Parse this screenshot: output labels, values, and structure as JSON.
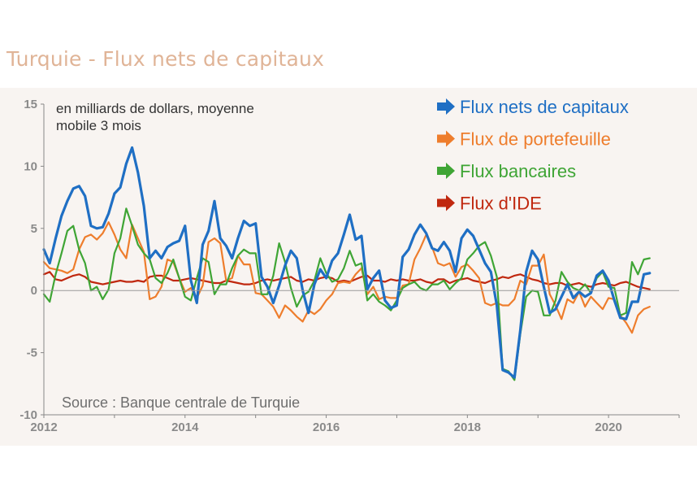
{
  "title": "Turquie - Flux nets de capitaux",
  "subtitle_line1": "en milliards de dollars, moyenne",
  "subtitle_line2": "mobile 3 mois",
  "source": "Source : Banque centrale de Turquie",
  "colors": {
    "panel_bg": "#f8f4f1",
    "axis": "#888888",
    "tick_label": "#8a8a8a",
    "flux_nets": "#1f6fc4",
    "flux_portefeuille": "#ee7d2c",
    "flux_bancaires": "#3fa535",
    "flux_ide": "#c0280f",
    "title": "#e0b497"
  },
  "chart_data": {
    "type": "line",
    "ylim": [
      -10,
      15
    ],
    "xlim": [
      2012,
      2021
    ],
    "yticks": [
      -10,
      -5,
      0,
      5,
      10,
      15
    ],
    "xticks": [
      2012,
      2014,
      2016,
      2018,
      2020
    ],
    "grid": false,
    "legend_position": "top-right",
    "series": [
      {
        "name": "Flux nets de capitaux",
        "color": "#1f6fc4",
        "x": [
          2012.0,
          2012.083,
          2012.167,
          2012.25,
          2012.333,
          2012.417,
          2012.5,
          2012.583,
          2012.667,
          2012.75,
          2012.833,
          2012.917,
          2013.0,
          2013.083,
          2013.167,
          2013.25,
          2013.333,
          2013.417,
          2013.5,
          2013.583,
          2013.667,
          2013.75,
          2013.833,
          2013.917,
          2014.0,
          2014.083,
          2014.167,
          2014.25,
          2014.333,
          2014.417,
          2014.5,
          2014.583,
          2014.667,
          2014.75,
          2014.833,
          2014.917,
          2015.0,
          2015.083,
          2015.167,
          2015.25,
          2015.333,
          2015.417,
          2015.5,
          2015.583,
          2015.667,
          2015.75,
          2015.833,
          2015.917,
          2016.0,
          2016.083,
          2016.167,
          2016.25,
          2016.333,
          2016.417,
          2016.5,
          2016.583,
          2016.667,
          2016.75,
          2016.833,
          2016.917,
          2017.0,
          2017.083,
          2017.167,
          2017.25,
          2017.333,
          2017.417,
          2017.5,
          2017.583,
          2017.667,
          2017.75,
          2017.833,
          2017.917,
          2018.0,
          2018.083,
          2018.167,
          2018.25,
          2018.333,
          2018.417,
          2018.5,
          2018.583,
          2018.667,
          2018.75,
          2018.833,
          2018.917,
          2019.0,
          2019.083,
          2019.167,
          2019.25,
          2019.333,
          2019.417,
          2019.5,
          2019.583,
          2019.667,
          2019.75,
          2019.833,
          2019.917,
          2020.0,
          2020.083,
          2020.167,
          2020.25,
          2020.333,
          2020.417,
          2020.5,
          2020.583
        ],
        "values": [
          3.3,
          2.2,
          4.2,
          6.0,
          7.2,
          8.2,
          8.4,
          7.6,
          5.2,
          5.0,
          5.1,
          6.2,
          7.8,
          8.3,
          10.2,
          11.5,
          9.5,
          6.8,
          2.6,
          3.2,
          2.6,
          3.5,
          3.8,
          4.0,
          5.2,
          0.8,
          -1.0,
          3.7,
          4.8,
          7.2,
          4.2,
          3.6,
          2.6,
          4.2,
          5.6,
          5.2,
          5.4,
          1.1,
          0.3,
          -1.0,
          0.4,
          2.0,
          3.2,
          2.6,
          0.0,
          -1.8,
          0.5,
          1.7,
          1.0,
          2.4,
          3.0,
          4.5,
          6.1,
          4.1,
          4.4,
          0.1,
          1.0,
          1.6,
          -0.8,
          -1.4,
          -1.2,
          2.7,
          3.3,
          4.5,
          5.3,
          4.6,
          3.4,
          3.2,
          3.9,
          3.2,
          1.5,
          4.2,
          4.9,
          4.4,
          3.3,
          2.2,
          1.5,
          -1.2,
          -6.4,
          -6.6,
          -7.0,
          -3.2,
          1.5,
          3.2,
          2.5,
          0.3,
          -1.8,
          -1.5,
          -0.5,
          0.5,
          -0.6,
          -0.1,
          -0.5,
          -0.2,
          1.2,
          1.6,
          0.8,
          -0.8,
          -2.2,
          -2.3,
          -0.9,
          -0.9,
          1.3,
          1.4
        ]
      },
      {
        "name": "Flux de portefeuille",
        "color": "#ee7d2c",
        "x": [
          2012.0,
          2012.083,
          2012.167,
          2012.25,
          2012.333,
          2012.417,
          2012.5,
          2012.583,
          2012.667,
          2012.75,
          2012.833,
          2012.917,
          2013.0,
          2013.083,
          2013.167,
          2013.25,
          2013.333,
          2013.417,
          2013.5,
          2013.583,
          2013.667,
          2013.75,
          2013.833,
          2013.917,
          2014.0,
          2014.083,
          2014.167,
          2014.25,
          2014.333,
          2014.417,
          2014.5,
          2014.583,
          2014.667,
          2014.75,
          2014.833,
          2014.917,
          2015.0,
          2015.083,
          2015.167,
          2015.25,
          2015.333,
          2015.417,
          2015.5,
          2015.583,
          2015.667,
          2015.75,
          2015.833,
          2015.917,
          2016.0,
          2016.083,
          2016.167,
          2016.25,
          2016.333,
          2016.417,
          2016.5,
          2016.583,
          2016.667,
          2016.75,
          2016.833,
          2016.917,
          2017.0,
          2017.083,
          2017.167,
          2017.25,
          2017.333,
          2017.417,
          2017.5,
          2017.583,
          2017.667,
          2017.75,
          2017.833,
          2017.917,
          2018.0,
          2018.083,
          2018.167,
          2018.25,
          2018.333,
          2018.417,
          2018.5,
          2018.583,
          2018.667,
          2018.75,
          2018.833,
          2018.917,
          2019.0,
          2019.083,
          2019.167,
          2019.25,
          2019.333,
          2019.417,
          2019.5,
          2019.583,
          2019.667,
          2019.75,
          2019.833,
          2019.917,
          2020.0,
          2020.083,
          2020.167,
          2020.25,
          2020.333,
          2020.417,
          2020.5,
          2020.583
        ],
        "values": [
          2.3,
          1.8,
          1.7,
          1.6,
          1.4,
          1.7,
          3.3,
          4.3,
          4.5,
          4.1,
          4.6,
          5.5,
          4.5,
          3.3,
          2.6,
          5.3,
          4.2,
          3.1,
          -0.7,
          -0.5,
          0.3,
          2.5,
          2.3,
          1.0,
          -0.1,
          0.2,
          -0.6,
          0.4,
          3.9,
          4.2,
          3.8,
          0.8,
          1.0,
          2.8,
          2.1,
          2.1,
          -0.2,
          -0.3,
          -0.8,
          -1.3,
          -2.2,
          -1.2,
          -1.6,
          -2.1,
          -2.5,
          -1.6,
          -1.9,
          -1.5,
          -0.8,
          -0.3,
          0.6,
          0.7,
          0.6,
          1.3,
          1.8,
          -0.3,
          0.3,
          -0.7,
          -0.5,
          -0.6,
          -0.6,
          0.4,
          0.5,
          2.5,
          3.4,
          4.5,
          3.5,
          2.2,
          2.0,
          2.2,
          1.1,
          1.9,
          2.1,
          1.6,
          1.0,
          -1.0,
          -1.2,
          -1.0,
          -1.2,
          -1.2,
          -0.7,
          0.8,
          0.5,
          2.0,
          2.0,
          2.9,
          -0.3,
          -1.2,
          -2.3,
          -0.7,
          -1.0,
          -0.1,
          -1.3,
          -0.5,
          -1.0,
          -1.5,
          -0.6,
          -0.7,
          -2.0,
          -2.6,
          -3.4,
          -2.0,
          -1.5,
          -1.3
        ]
      },
      {
        "name": "Flux bancaires",
        "color": "#3fa535",
        "x": [
          2012.0,
          2012.083,
          2012.167,
          2012.25,
          2012.333,
          2012.417,
          2012.5,
          2012.583,
          2012.667,
          2012.75,
          2012.833,
          2012.917,
          2013.0,
          2013.083,
          2013.167,
          2013.25,
          2013.333,
          2013.417,
          2013.5,
          2013.583,
          2013.667,
          2013.75,
          2013.833,
          2013.917,
          2014.0,
          2014.083,
          2014.167,
          2014.25,
          2014.333,
          2014.417,
          2014.5,
          2014.583,
          2014.667,
          2014.75,
          2014.833,
          2014.917,
          2015.0,
          2015.083,
          2015.167,
          2015.25,
          2015.333,
          2015.417,
          2015.5,
          2015.583,
          2015.667,
          2015.75,
          2015.833,
          2015.917,
          2016.0,
          2016.083,
          2016.167,
          2016.25,
          2016.333,
          2016.417,
          2016.5,
          2016.583,
          2016.667,
          2016.75,
          2016.833,
          2016.917,
          2017.0,
          2017.083,
          2017.167,
          2017.25,
          2017.333,
          2017.417,
          2017.5,
          2017.583,
          2017.667,
          2017.75,
          2017.833,
          2017.917,
          2018.0,
          2018.083,
          2018.167,
          2018.25,
          2018.333,
          2018.417,
          2018.5,
          2018.583,
          2018.667,
          2018.75,
          2018.833,
          2018.917,
          2019.0,
          2019.083,
          2019.167,
          2019.25,
          2019.333,
          2019.417,
          2019.5,
          2019.583,
          2019.667,
          2019.75,
          2019.833,
          2019.917,
          2020.0,
          2020.083,
          2020.167,
          2020.25,
          2020.333,
          2020.417,
          2020.5,
          2020.583
        ],
        "values": [
          -0.3,
          -0.9,
          1.3,
          3.0,
          4.8,
          5.2,
          3.3,
          2.2,
          0.0,
          0.3,
          -0.7,
          0.1,
          3.0,
          4.2,
          6.6,
          5.2,
          3.7,
          3.0,
          2.5,
          1.0,
          0.6,
          1.4,
          2.5,
          1.0,
          -0.5,
          -0.8,
          1.0,
          2.6,
          2.3,
          -0.3,
          0.5,
          0.5,
          1.8,
          2.8,
          3.3,
          3.0,
          3.0,
          -0.3,
          -0.3,
          1.2,
          3.8,
          2.3,
          0.2,
          -1.3,
          -0.4,
          -0.1,
          0.8,
          2.6,
          1.4,
          0.7,
          0.9,
          1.8,
          3.2,
          2.0,
          2.2,
          -0.8,
          -0.3,
          -0.9,
          -1.2,
          -1.6,
          -0.8,
          0.2,
          0.5,
          0.7,
          0.2,
          0.0,
          0.5,
          0.5,
          0.8,
          0.1,
          0.6,
          1.0,
          2.5,
          3.0,
          3.6,
          3.9,
          2.8,
          1.1,
          -6.3,
          -6.5,
          -7.2,
          -3.5,
          -0.5,
          0.0,
          -0.1,
          -2.0,
          -2.0,
          -0.8,
          1.5,
          0.7,
          0.2,
          0.0,
          0.5,
          -0.2,
          1.0,
          1.5,
          0.3,
          0.2,
          -2.0,
          -1.8,
          2.3,
          1.3,
          2.5,
          2.6
        ]
      },
      {
        "name": "Flux d'IDE",
        "color": "#c0280f",
        "x": [
          2012.0,
          2012.083,
          2012.167,
          2012.25,
          2012.333,
          2012.417,
          2012.5,
          2012.583,
          2012.667,
          2012.75,
          2012.833,
          2012.917,
          2013.0,
          2013.083,
          2013.167,
          2013.25,
          2013.333,
          2013.417,
          2013.5,
          2013.583,
          2013.667,
          2013.75,
          2013.833,
          2013.917,
          2014.0,
          2014.083,
          2014.167,
          2014.25,
          2014.333,
          2014.417,
          2014.5,
          2014.583,
          2014.667,
          2014.75,
          2014.833,
          2014.917,
          2015.0,
          2015.083,
          2015.167,
          2015.25,
          2015.333,
          2015.417,
          2015.5,
          2015.583,
          2015.667,
          2015.75,
          2015.833,
          2015.917,
          2016.0,
          2016.083,
          2016.167,
          2016.25,
          2016.333,
          2016.417,
          2016.5,
          2016.583,
          2016.667,
          2016.75,
          2016.833,
          2016.917,
          2017.0,
          2017.083,
          2017.167,
          2017.25,
          2017.333,
          2017.417,
          2017.5,
          2017.583,
          2017.667,
          2017.75,
          2017.833,
          2017.917,
          2018.0,
          2018.083,
          2018.167,
          2018.25,
          2018.333,
          2018.417,
          2018.5,
          2018.583,
          2018.667,
          2018.75,
          2018.833,
          2018.917,
          2019.0,
          2019.083,
          2019.167,
          2019.25,
          2019.333,
          2019.417,
          2019.5,
          2019.583,
          2019.667,
          2019.75,
          2019.833,
          2019.917,
          2020.0,
          2020.083,
          2020.167,
          2020.25,
          2020.333,
          2020.417,
          2020.5,
          2020.583
        ],
        "values": [
          1.3,
          1.5,
          0.9,
          0.8,
          1.0,
          1.2,
          1.3,
          1.1,
          0.7,
          0.6,
          0.5,
          0.6,
          0.7,
          0.8,
          0.7,
          0.7,
          0.8,
          0.7,
          1.1,
          1.2,
          1.2,
          1.0,
          0.8,
          0.8,
          0.9,
          1.0,
          0.9,
          0.8,
          0.7,
          0.6,
          0.6,
          0.8,
          0.7,
          0.6,
          0.5,
          0.5,
          0.6,
          0.8,
          0.9,
          0.8,
          0.9,
          1.0,
          1.1,
          0.8,
          0.7,
          0.9,
          0.8,
          1.0,
          1.1,
          1.0,
          0.7,
          0.8,
          0.7,
          0.9,
          1.1,
          1.2,
          0.8,
          0.8,
          0.7,
          0.9,
          0.8,
          0.9,
          0.8,
          0.8,
          0.9,
          0.7,
          0.6,
          0.9,
          0.9,
          0.6,
          0.8,
          0.9,
          1.0,
          0.8,
          0.7,
          0.6,
          0.8,
          0.9,
          1.1,
          1.0,
          1.2,
          1.3,
          1.1,
          0.9,
          0.8,
          0.6,
          0.5,
          0.6,
          0.6,
          0.4,
          0.5,
          0.6,
          0.4,
          0.3,
          0.5,
          0.6,
          0.5,
          0.4,
          0.6,
          0.7,
          0.5,
          0.3,
          0.2,
          0.1
        ]
      }
    ]
  }
}
